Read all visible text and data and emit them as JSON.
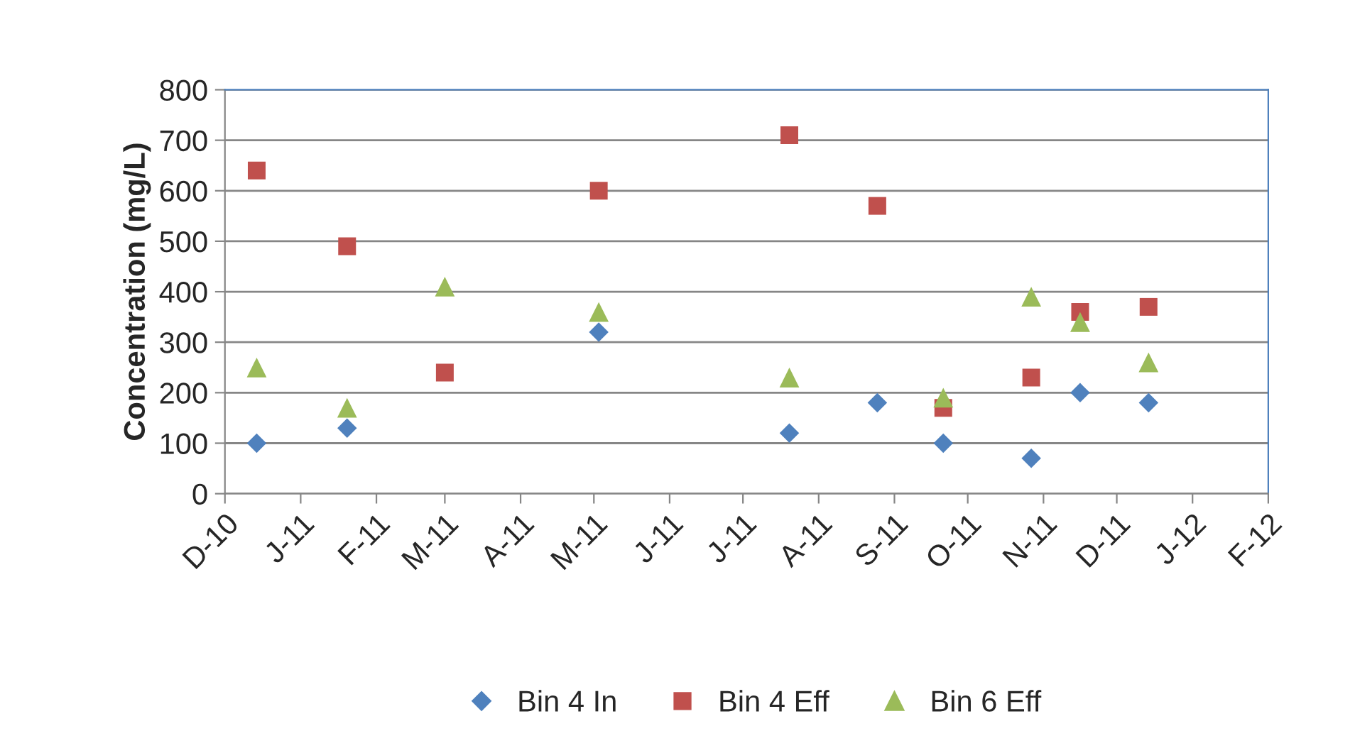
{
  "chart_data": {
    "type": "scatter",
    "ylabel": "Concentration (mg/L)",
    "x": [
      "2010-12-14",
      "2011-01-20",
      "2011-03-01",
      "2011-05-03",
      "2011-07-20",
      "2011-08-25",
      "2011-09-21",
      "2011-10-27",
      "2011-11-16",
      "2011-12-14"
    ],
    "series": [
      {
        "name": "Bin 4 In",
        "color": "#4f81bd",
        "marker": "diamond",
        "values": [
          100,
          130,
          null,
          320,
          120,
          180,
          100,
          70,
          200,
          180
        ]
      },
      {
        "name": "Bin 4 Eff",
        "color": "#c0504d",
        "marker": "square",
        "values": [
          640,
          490,
          240,
          600,
          710,
          570,
          170,
          230,
          360,
          370
        ]
      },
      {
        "name": "Bin 6 Eff",
        "color": "#9bbb59",
        "marker": "triangle",
        "values": [
          250,
          170,
          410,
          360,
          230,
          null,
          190,
          390,
          340,
          260
        ]
      }
    ],
    "xlim": [
      "2010-12-01",
      "2012-02-01"
    ],
    "xticks": [
      {
        "value": "2010-12-01",
        "label": "D-10"
      },
      {
        "value": "2011-01-01",
        "label": "J-11"
      },
      {
        "value": "2011-02-01",
        "label": "F-11"
      },
      {
        "value": "2011-03-01",
        "label": "M-11"
      },
      {
        "value": "2011-04-01",
        "label": "A-11"
      },
      {
        "value": "2011-05-01",
        "label": "M-11"
      },
      {
        "value": "2011-06-01",
        "label": "J-11"
      },
      {
        "value": "2011-07-01",
        "label": "J-11"
      },
      {
        "value": "2011-08-01",
        "label": "A-11"
      },
      {
        "value": "2011-09-01",
        "label": "S-11"
      },
      {
        "value": "2011-10-01",
        "label": "O-11"
      },
      {
        "value": "2011-11-01",
        "label": "N-11"
      },
      {
        "value": "2011-12-01",
        "label": "D-11"
      },
      {
        "value": "2012-01-01",
        "label": "J-12"
      },
      {
        "value": "2012-02-01",
        "label": "F-12"
      }
    ],
    "ylim": [
      0,
      800
    ],
    "yticks": [
      0,
      100,
      200,
      300,
      400,
      500,
      600,
      700,
      800
    ],
    "grid": "y",
    "legend": "bottom"
  }
}
